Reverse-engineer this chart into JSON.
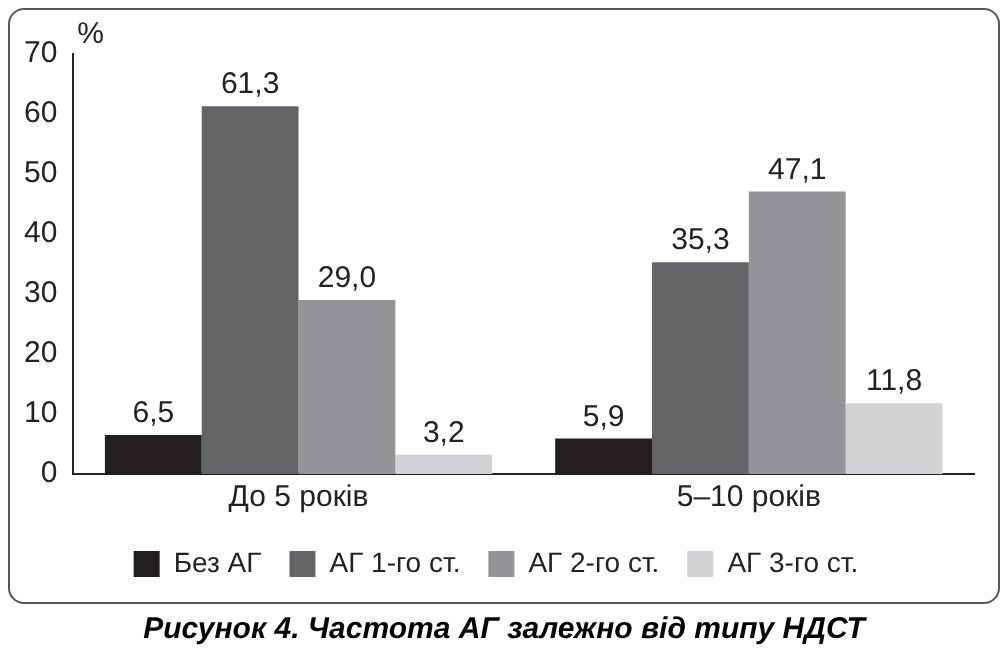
{
  "chart_data": {
    "type": "bar",
    "title": "Рисунок 4.  Частота АГ залежно від типу НДСТ",
    "ylabel": "%",
    "categories": [
      "До 5 років",
      "5–10 років"
    ],
    "series": [
      {
        "name": "Без АГ",
        "color": "#231f20",
        "values": [
          6.5,
          5.9
        ],
        "value_labels": [
          "6,5",
          "5,9"
        ]
      },
      {
        "name": "АГ 1-го ст.",
        "color": "#636466",
        "values": [
          61.3,
          35.3
        ],
        "value_labels": [
          "61,3",
          "35,3"
        ]
      },
      {
        "name": "АГ 2-го ст.",
        "color": "#939598",
        "values": [
          29.0,
          47.1
        ],
        "value_labels": [
          "29,0",
          "47,1"
        ]
      },
      {
        "name": "АГ 3-го ст.",
        "color": "#d1d3d4",
        "values": [
          3.2,
          11.8
        ],
        "value_labels": [
          "3,2",
          "11,8"
        ]
      }
    ],
    "ylim": [
      0,
      70
    ],
    "yticks": [
      0,
      10,
      20,
      30,
      40,
      50,
      60,
      70
    ],
    "grid": false,
    "legend": "bottom"
  }
}
